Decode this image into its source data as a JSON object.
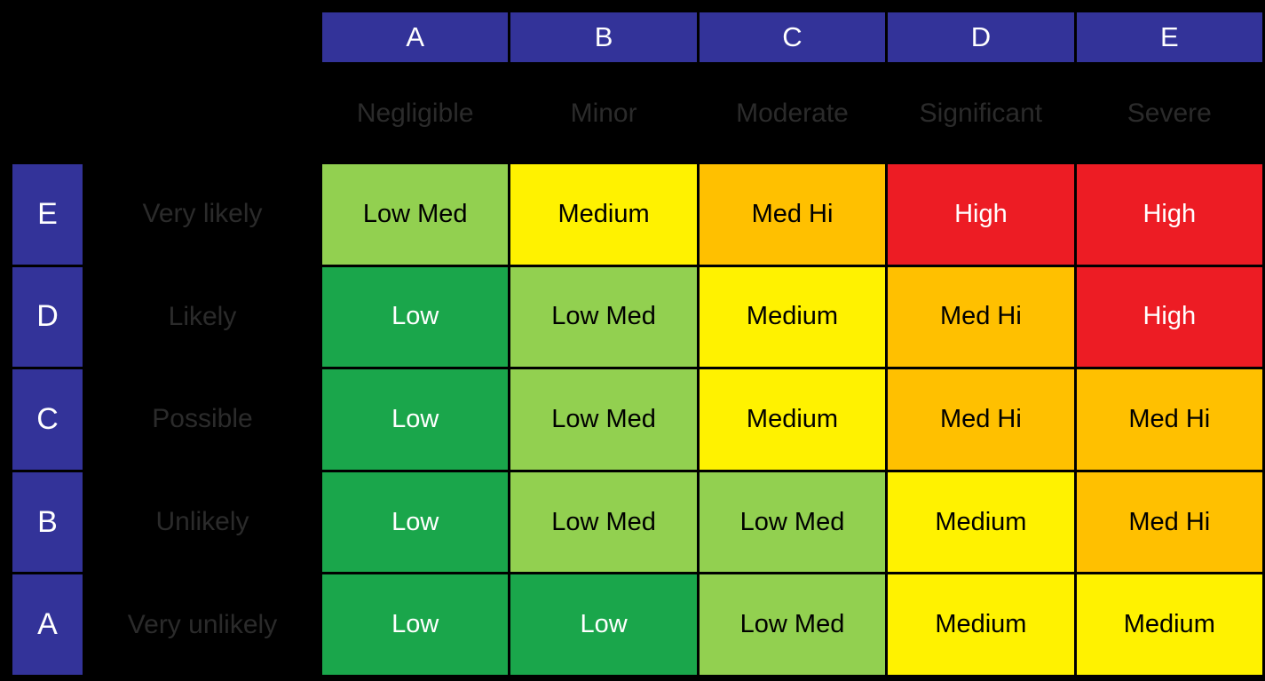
{
  "matrix": {
    "column_headers": [
      {
        "letter": "A",
        "label": "Negligible"
      },
      {
        "letter": "B",
        "label": "Minor"
      },
      {
        "letter": "C",
        "label": "Moderate"
      },
      {
        "letter": "D",
        "label": "Significant"
      },
      {
        "letter": "E",
        "label": "Severe"
      }
    ],
    "row_headers": [
      {
        "letter": "E",
        "label": "Very likely"
      },
      {
        "letter": "D",
        "label": "Likely"
      },
      {
        "letter": "C",
        "label": "Possible"
      },
      {
        "letter": "B",
        "label": "Unlikely"
      },
      {
        "letter": "A",
        "label": "Very unlikely"
      }
    ],
    "cells": [
      [
        "Low Med",
        "Medium",
        "Med Hi",
        "High",
        "High"
      ],
      [
        "Low",
        "Low Med",
        "Medium",
        "Med Hi",
        "High"
      ],
      [
        "Low",
        "Low Med",
        "Medium",
        "Med Hi",
        "Med Hi"
      ],
      [
        "Low",
        "Low Med",
        "Low Med",
        "Medium",
        "Med Hi"
      ],
      [
        "Low",
        "Low",
        "Low Med",
        "Medium",
        "Medium"
      ]
    ],
    "levels": {
      "Low": {
        "bg": "#1AA64B",
        "fg": "#FFFFFF"
      },
      "Low Med": {
        "bg": "#92D050",
        "fg": "#000000"
      },
      "Medium": {
        "bg": "#FFF200",
        "fg": "#000000"
      },
      "Med Hi": {
        "bg": "#FFC000",
        "fg": "#000000"
      },
      "High": {
        "bg": "#ED1C24",
        "fg": "#FFFFFF"
      }
    },
    "colors": {
      "background": "#000000",
      "header_bg": "#333399",
      "header_fg": "#FFFFFF",
      "faint_label_fg": "#2B2B2B",
      "grid_border": "#000000"
    }
  },
  "chart_data": {
    "type": "heatmap",
    "x_categories": [
      "A",
      "B",
      "C",
      "D",
      "E"
    ],
    "x_category_labels": [
      "Negligible",
      "Minor",
      "Moderate",
      "Significant",
      "Severe"
    ],
    "y_categories": [
      "E",
      "D",
      "C",
      "B",
      "A"
    ],
    "y_category_labels": [
      "Very likely",
      "Likely",
      "Possible",
      "Unlikely",
      "Very unlikely"
    ],
    "values": [
      [
        "Low Med",
        "Medium",
        "Med Hi",
        "High",
        "High"
      ],
      [
        "Low",
        "Low Med",
        "Medium",
        "Med Hi",
        "High"
      ],
      [
        "Low",
        "Low Med",
        "Medium",
        "Med Hi",
        "Med Hi"
      ],
      [
        "Low",
        "Low Med",
        "Low Med",
        "Medium",
        "Med Hi"
      ],
      [
        "Low",
        "Low",
        "Low Med",
        "Medium",
        "Medium"
      ]
    ],
    "value_levels": [
      "Low",
      "Low Med",
      "Medium",
      "Med Hi",
      "High"
    ],
    "level_colors": {
      "Low": "#1AA64B",
      "Low Med": "#92D050",
      "Medium": "#FFF200",
      "Med Hi": "#FFC000",
      "High": "#ED1C24"
    },
    "grid": true,
    "legend_position": "none"
  }
}
